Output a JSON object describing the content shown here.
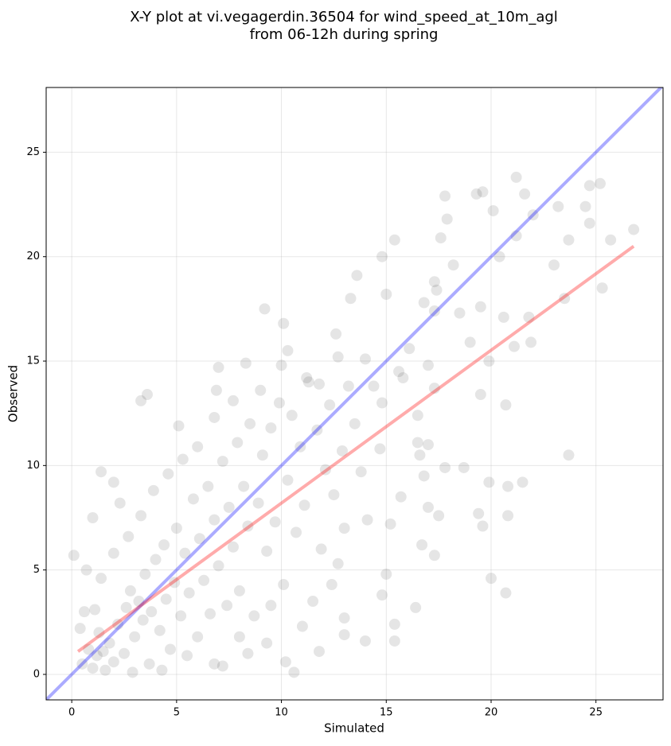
{
  "chart_data": {
    "type": "scatter",
    "title": [
      "X-Y plot at vi.vegagerdin.36504 for wind_speed_at_10m_agl",
      "from 06-12h during spring"
    ],
    "x_label": "Simulated",
    "y_label": "Observed",
    "xlim": [
      -1.22,
      28.2
    ],
    "ylim": [
      -1.22,
      28.1
    ],
    "xticks": [
      0,
      5,
      10,
      15,
      20,
      25
    ],
    "yticks": [
      0,
      5,
      10,
      15,
      20,
      25
    ],
    "grid": true,
    "series": [
      {
        "color": "#000000",
        "x": [
          0.1,
          0.7,
          1.0,
          1.4,
          2.0,
          2.3,
          3.3,
          3.6,
          5.1,
          7.0,
          6.9,
          9.2,
          10.1,
          10.3,
          12.6,
          13.6,
          14.8,
          15.4,
          15.0,
          13.3,
          17.8,
          17.9,
          17.6,
          18.2,
          19.3,
          19.6,
          20.1,
          21.2,
          22.0,
          21.6,
          24.7,
          25.2,
          24.5,
          23.2,
          24.7,
          25.7,
          26.8,
          23.7,
          23.0,
          20.4,
          21.2,
          25.3,
          23.5,
          21.8,
          20.6,
          19.5,
          18.5,
          17.3,
          17.3,
          17.4,
          16.8,
          19.0,
          19.9,
          21.1,
          21.9,
          16.1,
          15.6,
          15.8,
          17.0,
          14.4,
          14.8,
          17.3,
          16.5,
          19.5,
          20.7,
          16.5,
          16.6,
          17.0,
          14.7,
          16.8,
          17.8,
          18.7,
          19.9,
          21.5,
          23.7,
          20.8,
          19.4,
          19.6,
          20.8,
          17.5,
          17.0,
          16.7,
          17.3,
          15.7,
          15.2,
          14.1,
          15.0,
          14.8,
          16.4,
          15.4,
          15.4,
          14.0,
          20.0,
          20.7,
          13.0,
          13.0,
          11.8,
          10.6,
          10.2,
          9.3,
          8.4,
          7.2,
          0.5,
          0.8,
          1.0,
          1.2,
          1.3,
          1.5,
          1.6,
          1.8,
          1.1,
          0.6,
          0.4,
          2.0,
          2.2,
          2.5,
          2.6,
          2.8,
          3.0,
          3.2,
          3.4,
          3.5,
          3.7,
          3.8,
          4.0,
          4.2,
          4.4,
          4.5,
          4.7,
          4.9,
          5.0,
          5.2,
          5.4,
          5.6,
          5.8,
          6.0,
          6.1,
          6.3,
          6.5,
          6.6,
          6.8,
          7.0,
          7.2,
          7.4,
          7.5,
          7.7,
          7.9,
          8.0,
          8.2,
          8.4,
          8.5,
          8.7,
          8.9,
          9.1,
          9.3,
          9.5,
          9.7,
          9.9,
          10.1,
          10.3,
          10.5,
          10.7,
          10.9,
          11.1,
          11.3,
          11.5,
          11.7,
          11.9,
          12.1,
          12.3,
          12.5,
          12.7,
          12.9,
          13.2,
          13.5,
          13.8,
          14.0,
          13.0,
          12.4,
          11.0,
          9.5,
          8.0,
          6.8,
          5.5,
          4.3,
          2.9,
          1.4,
          2.0,
          2.7,
          3.3,
          3.9,
          4.6,
          5.3,
          6.0,
          6.8,
          7.7,
          8.3,
          9.0,
          10.0,
          11.2,
          11.8,
          12.7
        ],
        "values": [
          5.7,
          5.0,
          7.5,
          9.7,
          9.2,
          8.2,
          13.1,
          13.4,
          11.9,
          14.7,
          13.6,
          17.5,
          16.8,
          15.5,
          16.3,
          19.1,
          20.0,
          20.8,
          18.2,
          18.0,
          22.9,
          21.8,
          20.9,
          19.6,
          23.0,
          23.1,
          22.2,
          23.8,
          22.0,
          23.0,
          23.4,
          23.5,
          22.4,
          22.4,
          21.6,
          20.8,
          21.3,
          20.8,
          19.6,
          20.0,
          21.0,
          18.5,
          18.0,
          17.1,
          17.1,
          17.6,
          17.3,
          17.4,
          18.8,
          18.4,
          17.8,
          15.9,
          15.0,
          15.7,
          15.9,
          15.6,
          14.5,
          14.2,
          14.8,
          13.8,
          13.0,
          13.7,
          12.4,
          13.4,
          12.9,
          11.1,
          10.5,
          11.0,
          10.8,
          9.5,
          9.9,
          9.9,
          9.2,
          9.2,
          10.5,
          9.0,
          7.7,
          7.1,
          7.6,
          7.6,
          8.0,
          6.2,
          5.7,
          8.5,
          7.2,
          7.4,
          4.8,
          3.8,
          3.2,
          2.4,
          1.6,
          1.6,
          4.6,
          3.9,
          1.9,
          2.7,
          1.1,
          0.1,
          0.6,
          1.5,
          1.0,
          0.4,
          0.5,
          1.2,
          0.3,
          0.9,
          2.0,
          1.1,
          0.2,
          1.5,
          3.1,
          3.0,
          2.2,
          0.6,
          2.4,
          1.0,
          3.2,
          4.0,
          1.8,
          3.5,
          2.6,
          4.8,
          0.5,
          3.0,
          5.5,
          2.1,
          6.2,
          3.6,
          1.2,
          4.4,
          7.0,
          2.8,
          5.8,
          3.9,
          8.4,
          1.8,
          6.5,
          4.5,
          9.0,
          2.9,
          7.4,
          5.2,
          10.2,
          3.3,
          8.0,
          6.1,
          11.1,
          4.0,
          9.0,
          7.1,
          12.0,
          2.8,
          8.2,
          10.5,
          5.9,
          11.8,
          7.3,
          13.0,
          4.3,
          9.3,
          12.4,
          6.8,
          10.9,
          8.1,
          14.0,
          3.5,
          11.7,
          6.0,
          9.8,
          12.9,
          8.6,
          5.3,
          10.7,
          13.8,
          12.0,
          9.7,
          15.1,
          7.0,
          4.3,
          2.3,
          3.3,
          1.8,
          0.5,
          0.9,
          0.2,
          0.1,
          4.6,
          5.8,
          6.6,
          7.6,
          8.8,
          9.6,
          10.3,
          10.9,
          12.3,
          13.1,
          14.9,
          13.6,
          14.8,
          14.2,
          13.9,
          15.2
        ]
      }
    ],
    "lines": [
      {
        "color": "#0000ff",
        "x": [
          -1.22,
          28.2
        ],
        "values": [
          -1.22,
          28.2
        ]
      },
      {
        "color": "#ff0000",
        "x": [
          0.3,
          26.8
        ],
        "values": [
          1.1,
          20.5
        ]
      }
    ]
  }
}
